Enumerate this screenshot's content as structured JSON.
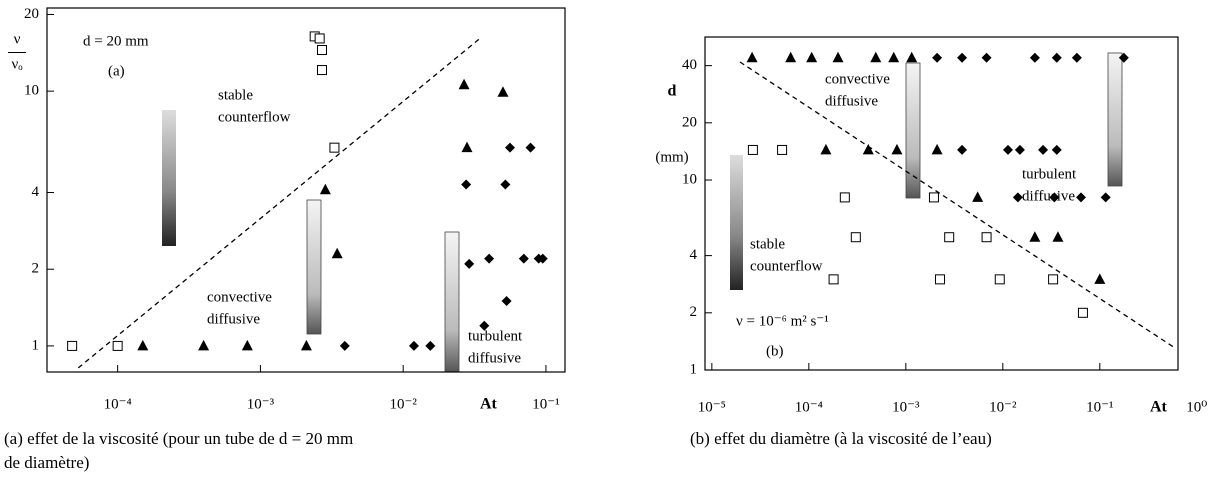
{
  "chart_data": [
    {
      "type": "scatter",
      "scale": "log",
      "xlim": [
        3.2e-05,
        0.136
      ],
      "ylim": [
        0.79,
        21.2
      ],
      "xticks": [
        {
          "value": 0.0001,
          "label": "10⁻⁴"
        },
        {
          "value": 0.001,
          "label": "10⁻³"
        },
        {
          "value": 0.01,
          "label": "10⁻²"
        },
        {
          "value": 0.1,
          "label": "10⁻¹"
        }
      ],
      "yticks": [
        1,
        2,
        4,
        10,
        20
      ],
      "xlabel": "At",
      "ylabel_top": "ν",
      "ylabel_bottom": "νₒ",
      "series": [
        {
          "marker": "square",
          "color": "#000000",
          "x": [
            4.8e-05,
            0.0001,
            0.0024,
            0.0026,
            0.0027,
            0.0027,
            0.0033
          ],
          "values": [
            1,
            1,
            16.4,
            16.1,
            14.5,
            12.1,
            6.0
          ]
        },
        {
          "marker": "triangle",
          "color": "#000000",
          "x": [
            0.00015,
            0.0004,
            0.00081,
            0.0021,
            0.00285,
            0.00345,
            0.0267,
            0.05,
            0.028
          ],
          "values": [
            1,
            1,
            1,
            1,
            4.1,
            2.3,
            10.6,
            9.9,
            6.0
          ]
        },
        {
          "marker": "diamond",
          "color": "#000000",
          "x": [
            0.0039,
            0.0119,
            0.0155,
            0.0276,
            0.052,
            0.056,
            0.078,
            0.029,
            0.04,
            0.07,
            0.089,
            0.095,
            0.053,
            0.037
          ],
          "values": [
            1,
            1,
            1,
            4.3,
            4.3,
            6.0,
            6.0,
            2.1,
            2.2,
            2.2,
            2.2,
            2.2,
            1.5,
            1.2
          ]
        }
      ],
      "boundary": {
        "x": [
          5.3e-05,
          0.0345
        ],
        "values": [
          0.82,
          16.1
        ]
      },
      "annotations": [
        {
          "text": [
            "d = 20 mm"
          ]
        },
        {
          "text": [
            "(a)"
          ]
        },
        {
          "text": [
            "stable",
            "counterflow"
          ]
        },
        {
          "text": [
            "convective",
            "diffusive"
          ]
        },
        {
          "text": [
            "turbulent",
            "diffusive"
          ]
        }
      ],
      "caption": [
        "(a) effet de la viscosité (pour un tube de d = 20 mm",
        "de diamètre)"
      ]
    },
    {
      "type": "scatter",
      "scale": "log",
      "xlim": [
        8.5e-06,
        0.64
      ],
      "ylim": [
        1,
        56.6
      ],
      "xticks": [
        {
          "value": 1e-05,
          "label": "10⁻⁵"
        },
        {
          "value": 0.0001,
          "label": "10⁻⁴"
        },
        {
          "value": 0.001,
          "label": "10⁻³"
        },
        {
          "value": 0.01,
          "label": "10⁻²"
        },
        {
          "value": 0.1,
          "label": "10⁻¹"
        },
        {
          "value": 1,
          "label": "10⁰"
        }
      ],
      "yticks": [
        1,
        2,
        4,
        10,
        20,
        40
      ],
      "xlabel": "At",
      "ylabel_top": "d",
      "ylabel_bottom": "(mm)",
      "series": [
        {
          "marker": "square",
          "color": "#000000",
          "x": [
            2.65e-05,
            5.3e-05,
            0.000235,
            0.00195,
            0.000305,
            0.0028,
            0.0068,
            0.00018,
            0.00225,
            0.0093,
            0.033,
            0.067
          ],
          "values": [
            14.4,
            14.4,
            8.1,
            8.1,
            5.0,
            5.0,
            5.0,
            3.0,
            3.0,
            3.0,
            3.0,
            2.0
          ]
        },
        {
          "marker": "triangle",
          "color": "#000000",
          "x": [
            2.6e-05,
            6.5e-05,
            0.000107,
            0.0002,
            0.00049,
            0.00075,
            0.00115,
            0.00015,
            0.00041,
            0.00081,
            0.0021,
            0.0055,
            0.0214,
            0.037,
            0.1
          ],
          "values": [
            44,
            44,
            44,
            44,
            44,
            44,
            44,
            14.4,
            14.4,
            14.4,
            14.4,
            8.1,
            5.0,
            5.0,
            3.0
          ]
        },
        {
          "marker": "diamond",
          "color": "#000000",
          "x": [
            0.0021,
            0.0038,
            0.0068,
            0.0214,
            0.036,
            0.058,
            0.177,
            0.0038,
            0.0113,
            0.015,
            0.026,
            0.036,
            0.0143,
            0.034,
            0.064,
            0.115
          ],
          "values": [
            44,
            44,
            44,
            44,
            44,
            44,
            44,
            14.4,
            14.4,
            14.4,
            14.4,
            14.4,
            8.1,
            8.1,
            8.1,
            8.1
          ]
        }
      ],
      "boundary": {
        "x": [
          1.95e-05,
          0.59
        ],
        "values": [
          41.8,
          1.31
        ]
      },
      "annotations": [
        {
          "text": [
            "convective",
            "diffusive"
          ]
        },
        {
          "text": [
            "turbulent",
            "diffusive"
          ]
        },
        {
          "text": [
            "stable",
            "counterflow"
          ]
        },
        {
          "text": [
            "ν = 10⁻⁶ m² s⁻¹"
          ]
        },
        {
          "text": [
            "(b)"
          ]
        }
      ],
      "caption": [
        "(b) effet du diamètre (à la viscosité de l’eau)"
      ]
    }
  ]
}
